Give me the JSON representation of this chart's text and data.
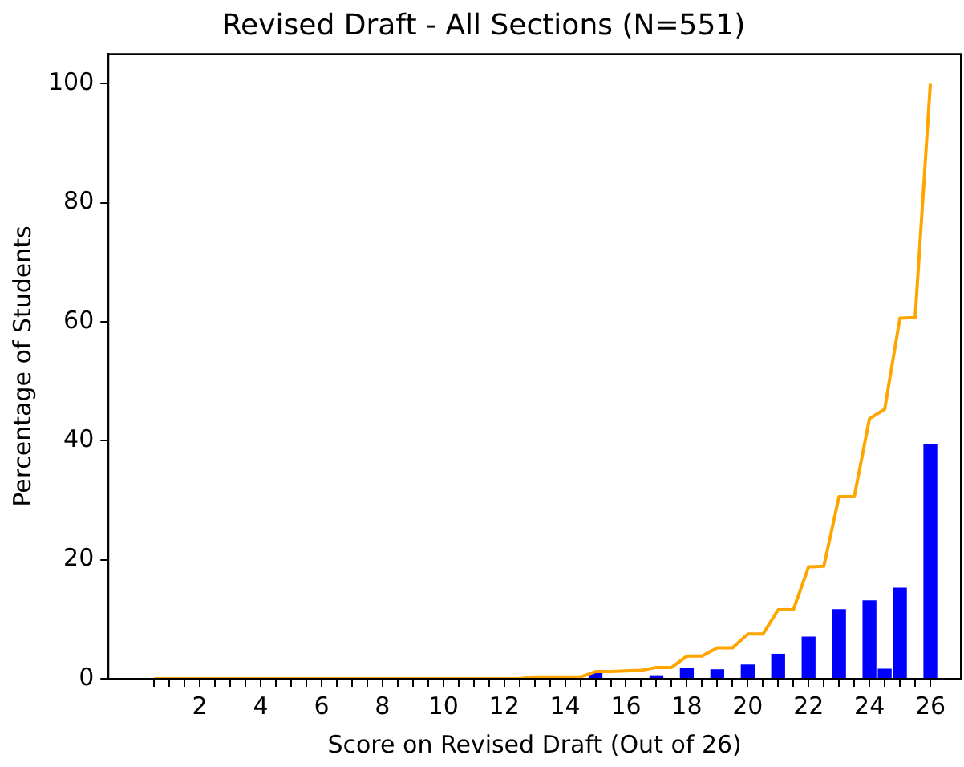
{
  "chart_data": {
    "type": "bar",
    "title": "Revised Draft - All Sections (N=551)",
    "xlabel": "Score on Revised Draft (Out of 26)",
    "ylabel": "Percentage of Students",
    "xlim": [
      -1,
      27
    ],
    "ylim": [
      0,
      105
    ],
    "yticks": [
      0,
      20,
      40,
      60,
      80,
      100
    ],
    "xticks": [
      {
        "value": 0.5,
        "label": null
      },
      {
        "value": 1,
        "label": null
      },
      {
        "value": 1.5,
        "label": null
      },
      2,
      {
        "value": 2.5,
        "label": null
      },
      {
        "value": 3,
        "label": null
      },
      {
        "value": 3.5,
        "label": null
      },
      4,
      {
        "value": 4.5,
        "label": null
      },
      {
        "value": 5,
        "label": null
      },
      {
        "value": 5.5,
        "label": null
      },
      6,
      {
        "value": 6.5,
        "label": null
      },
      {
        "value": 7,
        "label": null
      },
      {
        "value": 7.5,
        "label": null
      },
      8,
      {
        "value": 8.5,
        "label": null
      },
      {
        "value": 9,
        "label": null
      },
      {
        "value": 9.5,
        "label": null
      },
      10,
      {
        "value": 10.5,
        "label": null
      },
      {
        "value": 11,
        "label": null
      },
      {
        "value": 11.5,
        "label": null
      },
      12,
      {
        "value": 12.5,
        "label": null
      },
      {
        "value": 13,
        "label": null
      },
      {
        "value": 13.5,
        "label": null
      },
      14,
      {
        "value": 14.5,
        "label": null
      },
      {
        "value": 15,
        "label": null
      },
      {
        "value": 15.5,
        "label": null
      },
      16,
      {
        "value": 16.5,
        "label": null
      },
      {
        "value": 17,
        "label": null
      },
      {
        "value": 17.5,
        "label": null
      },
      18,
      {
        "value": 18.5,
        "label": null
      },
      {
        "value": 19,
        "label": null
      },
      {
        "value": 19.5,
        "label": null
      },
      20,
      {
        "value": 20.5,
        "label": null
      },
      {
        "value": 21,
        "label": null
      },
      {
        "value": 21.5,
        "label": null
      },
      22,
      {
        "value": 22.5,
        "label": null
      },
      {
        "value": 23,
        "label": null
      },
      {
        "value": 23.5,
        "label": null
      },
      24,
      {
        "value": 24.5,
        "label": null
      },
      {
        "value": 25,
        "label": null
      },
      {
        "value": 25.5,
        "label": null
      },
      26
    ],
    "grid": false,
    "legend": false,
    "series": [
      {
        "color": "#0000ff",
        "x": [
          15,
          17,
          18,
          19,
          20,
          21,
          22,
          23,
          24,
          24.5,
          25,
          26
        ],
        "values": [
          0.9,
          0.5,
          1.8,
          1.5,
          2.3,
          4.1,
          7.0,
          11.6,
          13.1,
          1.6,
          15.2,
          39.3
        ]
      },
      {
        "type": "line",
        "color": "#ffa500",
        "marker": "none",
        "line_style": "solid",
        "x": [
          0.5,
          1,
          1.5,
          2,
          2.5,
          3,
          3.5,
          4,
          4.5,
          5,
          5.5,
          6,
          6.5,
          7,
          7.5,
          8,
          8.5,
          9,
          9.5,
          10,
          10.5,
          11,
          11.5,
          12,
          12.5,
          13,
          13.5,
          14,
          14.5,
          15,
          15.5,
          16,
          16.5,
          17,
          17.5,
          18,
          18.5,
          19,
          19.5,
          20,
          20.5,
          21,
          21.5,
          22,
          22.5,
          23,
          23.5,
          24,
          24.5,
          25,
          25.5,
          26
        ],
        "values": [
          0,
          0,
          0,
          0,
          0,
          0,
          0,
          0,
          0,
          0,
          0,
          0,
          0,
          0,
          0,
          0,
          0,
          0,
          0,
          0,
          0,
          0,
          0,
          0,
          0,
          0.3,
          0.3,
          0.3,
          0.3,
          1.2,
          1.2,
          1.3,
          1.4,
          1.9,
          1.9,
          3.8,
          3.8,
          5.2,
          5.2,
          7.5,
          7.5,
          11.6,
          11.6,
          18.8,
          18.9,
          30.6,
          30.6,
          43.7,
          45.3,
          60.6,
          60.7,
          100
        ]
      }
    ]
  }
}
